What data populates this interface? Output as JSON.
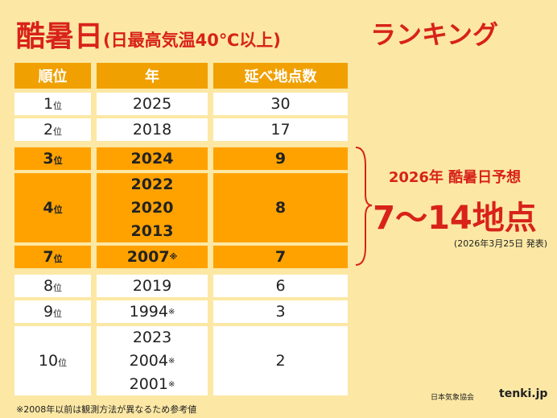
{
  "title": {
    "main": "酷暑日",
    "sub": "(日最高気温40℃以上)",
    "tail": "ランキング"
  },
  "table": {
    "header": [
      "順位",
      "年",
      "延べ地点数"
    ],
    "rows": [
      {
        "rank": "1",
        "suffix": "位",
        "years": [
          {
            "year": "2025"
          }
        ],
        "count": 30,
        "highlight": false
      },
      {
        "rank": "2",
        "suffix": "位",
        "years": [
          {
            "year": "2018"
          }
        ],
        "count": 17,
        "highlight": false
      },
      {
        "rank": "3",
        "suffix": "位",
        "years": [
          {
            "year": "2024"
          }
        ],
        "count": 9,
        "highlight": true
      },
      {
        "rank": "4",
        "suffix": "位",
        "years": [
          {
            "year": "2022"
          },
          {
            "year": "2020"
          },
          {
            "year": "2013"
          }
        ],
        "count": 8,
        "highlight": true
      },
      {
        "rank": "7",
        "suffix": "位",
        "years": [
          {
            "year": "2007",
            "note": "※"
          }
        ],
        "count": 7,
        "highlight": true
      },
      {
        "rank": "8",
        "suffix": "位",
        "years": [
          {
            "year": "2019"
          }
        ],
        "count": 6,
        "highlight": false
      },
      {
        "rank": "9",
        "suffix": "位",
        "years": [
          {
            "year": "1994",
            "note": "※"
          }
        ],
        "count": 3,
        "highlight": false
      },
      {
        "rank": "10",
        "suffix": "位",
        "years": [
          {
            "year": "2023"
          },
          {
            "year": "2004",
            "note": "※"
          },
          {
            "year": "2001",
            "note": "※"
          }
        ],
        "count": 2,
        "highlight": false
      }
    ]
  },
  "callout": {
    "heading": "2026年 酷暑日予想",
    "value": "7〜14地点",
    "note": "(2026年3月25日 発表)"
  },
  "footnote": "※2008年以前は観測方法が異なるため参考値",
  "credits": [
    "日本気象協会",
    "tenki.jp"
  ]
}
